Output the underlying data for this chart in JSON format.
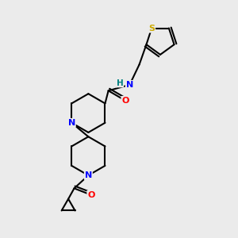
{
  "bg_color": "#ebebeb",
  "atom_colors": {
    "N": "#0000ff",
    "O": "#ff0000",
    "S": "#ccaa00",
    "H": "#008080",
    "C": "#000000"
  },
  "bond_color": "#000000",
  "bond_width": 1.5,
  "figsize": [
    3.0,
    3.0
  ],
  "dpi": 100
}
